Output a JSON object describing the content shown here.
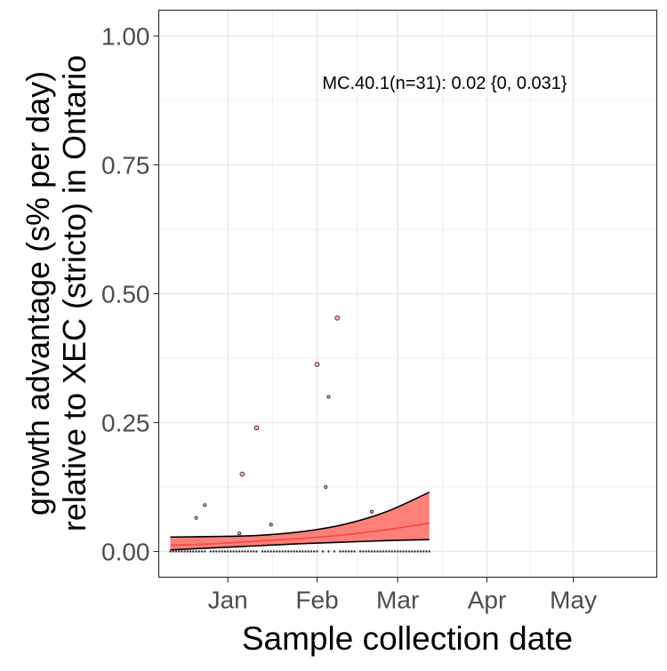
{
  "chart_data": {
    "type": "line",
    "xlabel": "Sample collection date",
    "ylabel_lines": [
      "growth advantage (s% per day)",
      "relative to XEC (stricto) in Ontario"
    ],
    "annotation": "MC.40.1(n=31): 0.02 {0, 0.031}",
    "x_range": [
      "2024-12-08",
      "2025-05-30"
    ],
    "ylim": [
      -0.05,
      1.05
    ],
    "grid": true,
    "y_ticks": [
      {
        "value": 0.0,
        "label": "0.00"
      },
      {
        "value": 0.25,
        "label": "0.25"
      },
      {
        "value": 0.5,
        "label": "0.50"
      },
      {
        "value": 0.75,
        "label": "0.75"
      },
      {
        "value": 1.0,
        "label": "1.00"
      }
    ],
    "x_ticks": [
      {
        "date": "2025-01-01",
        "label": "Jan"
      },
      {
        "date": "2025-02-01",
        "label": "Feb"
      },
      {
        "date": "2025-03-01",
        "label": "Mar"
      },
      {
        "date": "2025-04-01",
        "label": "Apr"
      },
      {
        "date": "2025-05-01",
        "label": "May"
      }
    ],
    "colors": {
      "fit_line": "#ee4b43",
      "ribbon_fill": "#ff7f79",
      "ribbon_edge": "#000000",
      "points_fill": "#ffb0ac",
      "points_edge": "#4a2220",
      "zero_points": "#333333",
      "grid": "#ebebeb",
      "panel_border": "#333333"
    },
    "series": [
      {
        "type": "fit",
        "x": [
          "2024-12-12",
          "2024-12-27",
          "2025-01-11",
          "2025-01-26",
          "2025-02-10",
          "2025-02-25",
          "2025-03-12"
        ],
        "y": [
          0.012,
          0.015,
          0.02,
          0.025,
          0.032,
          0.042,
          0.055
        ]
      },
      {
        "type": "ribbon",
        "x": [
          "2024-12-12",
          "2024-12-27",
          "2025-01-11",
          "2025-01-26",
          "2025-02-10",
          "2025-02-25",
          "2025-03-12"
        ],
        "lower": [
          0.003,
          0.007,
          0.011,
          0.015,
          0.018,
          0.021,
          0.023
        ],
        "upper": [
          0.028,
          0.029,
          0.031,
          0.038,
          0.052,
          0.077,
          0.115
        ]
      },
      {
        "type": "points",
        "x": [
          "2024-12-21",
          "2024-12-24",
          "2025-01-05",
          "2025-01-06",
          "2025-01-11",
          "2025-01-16",
          "2025-02-01",
          "2025-02-04",
          "2025-02-05",
          "2025-02-08",
          "2025-02-20"
        ],
        "y": [
          0.065,
          0.09,
          0.035,
          0.15,
          0.24,
          0.052,
          0.363,
          0.125,
          0.3,
          0.453,
          0.077
        ],
        "size": [
          1,
          1,
          1,
          2,
          2,
          1,
          2,
          1,
          1,
          2,
          1
        ]
      },
      {
        "type": "zero_points",
        "x_start": "2024-12-12",
        "x_end": "2025-03-12",
        "gaps": [
          "2024-12-25",
          "2025-01-12",
          "2025-02-02",
          "2025-02-04",
          "2025-02-06",
          "2025-02-08",
          "2025-02-15"
        ],
        "y": 0
      }
    ]
  }
}
